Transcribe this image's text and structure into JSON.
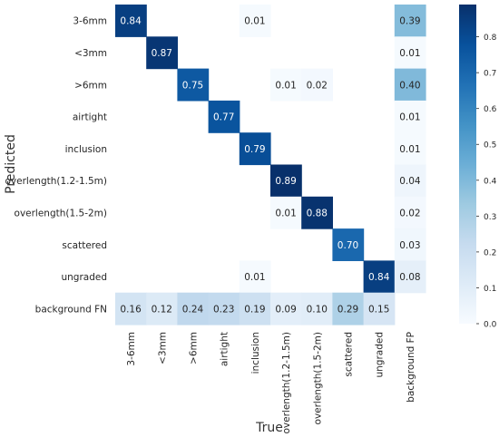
{
  "chart_data": {
    "type": "heatmap",
    "title": "",
    "xlabel": "True",
    "ylabel": "Predicted",
    "x_categories": [
      "3-6mm",
      "<3mm",
      ">6mm",
      "airtight",
      "inclusion",
      "overlength(1.2-1.5m)",
      "overlength(1.5-2m)",
      "scattered",
      "ungraded",
      "background FP"
    ],
    "y_categories": [
      "3-6mm",
      "<3mm",
      ">6mm",
      "airtight",
      "inclusion",
      "overlength(1.2-1.5m)",
      "overlength(1.5-2m)",
      "scattered",
      "ungraded",
      "background FN"
    ],
    "values": [
      [
        0.84,
        null,
        null,
        null,
        0.01,
        null,
        null,
        null,
        null,
        0.39
      ],
      [
        null,
        0.87,
        null,
        null,
        null,
        null,
        null,
        null,
        null,
        0.01
      ],
      [
        null,
        null,
        0.75,
        null,
        null,
        0.01,
        0.02,
        null,
        null,
        0.4
      ],
      [
        null,
        null,
        null,
        0.77,
        null,
        null,
        null,
        null,
        null,
        0.01
      ],
      [
        null,
        null,
        null,
        null,
        0.79,
        null,
        null,
        null,
        null,
        0.01
      ],
      [
        null,
        null,
        null,
        null,
        null,
        0.89,
        null,
        null,
        null,
        0.04
      ],
      [
        null,
        null,
        null,
        null,
        null,
        0.01,
        0.88,
        null,
        null,
        0.02
      ],
      [
        null,
        null,
        null,
        null,
        null,
        null,
        null,
        0.7,
        null,
        0.03
      ],
      [
        null,
        null,
        null,
        null,
        0.01,
        null,
        null,
        null,
        0.84,
        0.08
      ],
      [
        0.16,
        0.12,
        0.24,
        0.23,
        0.19,
        0.09,
        0.1,
        0.29,
        0.15,
        null
      ]
    ],
    "color_scale": {
      "name": "Blues",
      "min": 0.0,
      "max": 0.89,
      "ticks": [
        "0.0",
        "0.1",
        "0.2",
        "0.3",
        "0.4",
        "0.5",
        "0.6",
        "0.7",
        "0.8"
      ],
      "colors": [
        "#f7fbff",
        "#deebf7",
        "#c6dbef",
        "#9ecae1",
        "#6baed6",
        "#4292c6",
        "#2171b5",
        "#08519c",
        "#08306b"
      ]
    }
  }
}
